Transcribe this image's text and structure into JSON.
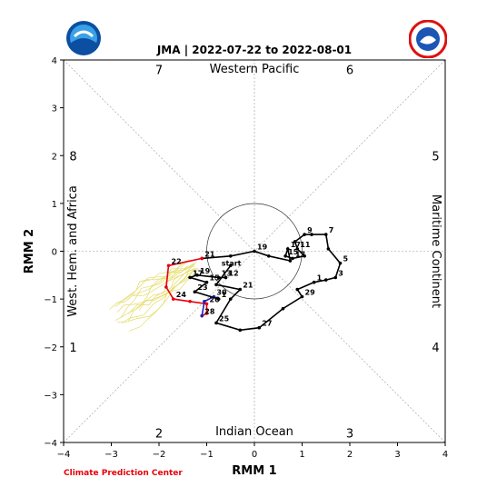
{
  "chart_data": {
    "type": "line",
    "title": "JMA | 2022-07-22 to 2022-08-01",
    "xlabel": "RMM 1",
    "ylabel": "RMM 2",
    "xlim": [
      -4,
      4
    ],
    "ylim": [
      -4,
      4
    ],
    "xticks": [
      "−4",
      "−3",
      "−2",
      "−1",
      "0",
      "1",
      "2",
      "3",
      "4"
    ],
    "yticks": [
      "−4",
      "−3",
      "−2",
      "−1",
      "0",
      "1",
      "2",
      "3",
      "4"
    ],
    "region_labels": {
      "top": "Western Pacific",
      "bottom": "Indian Ocean",
      "left": "West. Hem. and Africa",
      "right": "Maritime Continent"
    },
    "phase_labels": [
      {
        "text": "7",
        "x": -2,
        "y": 3.8
      },
      {
        "text": "6",
        "x": 2,
        "y": 3.8
      },
      {
        "text": "8",
        "x": -3.8,
        "y": 2
      },
      {
        "text": "5",
        "x": 3.8,
        "y": 2
      },
      {
        "text": "1",
        "x": -3.8,
        "y": -2
      },
      {
        "text": "4",
        "x": 3.8,
        "y": -2
      },
      {
        "text": "2",
        "x": -2,
        "y": -3.8
      },
      {
        "text": "3",
        "x": 2,
        "y": -3.8
      }
    ],
    "start_label": {
      "text": "start",
      "x": -0.5,
      "y": -0.3
    },
    "series": [
      {
        "color": "#000000",
        "points": [
          [
            -0.5,
            -0.3
          ],
          [
            -0.8,
            -0.7
          ],
          [
            -0.3,
            -0.8
          ],
          [
            -0.5,
            -1.0
          ],
          [
            -0.8,
            -1.5
          ],
          [
            -0.3,
            -1.65
          ],
          [
            0.1,
            -1.6
          ],
          [
            0.6,
            -1.2
          ],
          [
            1.0,
            -0.95
          ],
          [
            0.9,
            -0.8
          ],
          [
            1.25,
            -0.65
          ],
          [
            1.5,
            -0.6
          ],
          [
            1.7,
            -0.55
          ],
          [
            1.8,
            -0.25
          ],
          [
            1.55,
            0.05
          ],
          [
            1.5,
            0.35
          ],
          [
            1.2,
            0.35
          ],
          [
            1.05,
            0.35
          ],
          [
            0.85,
            0.2
          ],
          [
            0.9,
            0.05
          ],
          [
            1.05,
            -0.1
          ],
          [
            0.8,
            -0.15
          ],
          [
            0.65,
            -0.1
          ],
          [
            0.7,
            0.05
          ],
          [
            0.75,
            -0.2
          ],
          [
            0.3,
            -0.1
          ],
          [
            0.0,
            0.0
          ],
          [
            -0.5,
            -0.1
          ],
          [
            -1.1,
            -0.15
          ]
        ],
        "labels": [
          {
            "text": "21",
            "index": 2
          },
          {
            "text": "25",
            "index": 4
          },
          {
            "text": "27",
            "index": 6
          },
          {
            "text": "29",
            "index": 8
          },
          {
            "text": "1",
            "index": 10
          },
          {
            "text": "3",
            "index": 12
          },
          {
            "text": "5",
            "index": 13
          },
          {
            "text": "7",
            "index": 15
          },
          {
            "text": "9",
            "index": 17
          },
          {
            "text": "11",
            "index": 19
          },
          {
            "text": "13",
            "index": 21
          },
          {
            "text": "15",
            "index": 22
          },
          {
            "text": "17",
            "index": 23
          },
          {
            "text": "19",
            "index": 26
          },
          {
            "text": "21",
            "index": 28
          }
        ]
      },
      {
        "color": "#e8000b",
        "points": [
          [
            -1.1,
            -0.15
          ],
          [
            -1.8,
            -0.3
          ],
          [
            -1.85,
            -0.75
          ],
          [
            -1.7,
            -1.0
          ],
          [
            -1.35,
            -1.05
          ],
          [
            -1.0,
            -1.1
          ],
          [
            -1.0,
            -1.3
          ],
          [
            -1.1,
            -1.35
          ]
        ],
        "labels": [
          {
            "text": "22",
            "index": 1
          },
          {
            "text": "24",
            "index": 3
          },
          {
            "text": "26",
            "index": 5
          },
          {
            "text": "28",
            "index": 7
          }
        ]
      },
      {
        "color": "#1f1fb4",
        "points": [
          [
            -1.1,
            -1.35
          ],
          [
            -1.05,
            -1.05
          ],
          [
            -0.85,
            -0.95
          ],
          [
            -0.75,
            -1.0
          ]
        ],
        "labels": [
          {
            "text": "30",
            "index": 2
          }
        ]
      },
      {
        "color": "#000000",
        "points": [
          [
            -0.75,
            -1.0
          ],
          [
            -1.25,
            -0.85
          ],
          [
            -1.0,
            -0.65
          ],
          [
            -1.35,
            -0.55
          ],
          [
            -1.2,
            -0.5
          ],
          [
            -0.75,
            -0.55
          ],
          [
            -0.6,
            -0.55
          ]
        ],
        "labels": [
          {
            "text": "23",
            "index": 1
          },
          {
            "text": "15",
            "index": 2
          },
          {
            "text": "17",
            "index": 3
          },
          {
            "text": "19",
            "index": 4
          },
          {
            "text": "13",
            "index": 5
          },
          {
            "text": "12",
            "index": 6
          },
          {
            "text": "1",
            "index": 0
          }
        ]
      }
    ]
  },
  "footer": {
    "credit": "Climate Prediction Center"
  },
  "logos": {
    "left": "noaa-logo",
    "right": "national-weather-service-logo"
  }
}
